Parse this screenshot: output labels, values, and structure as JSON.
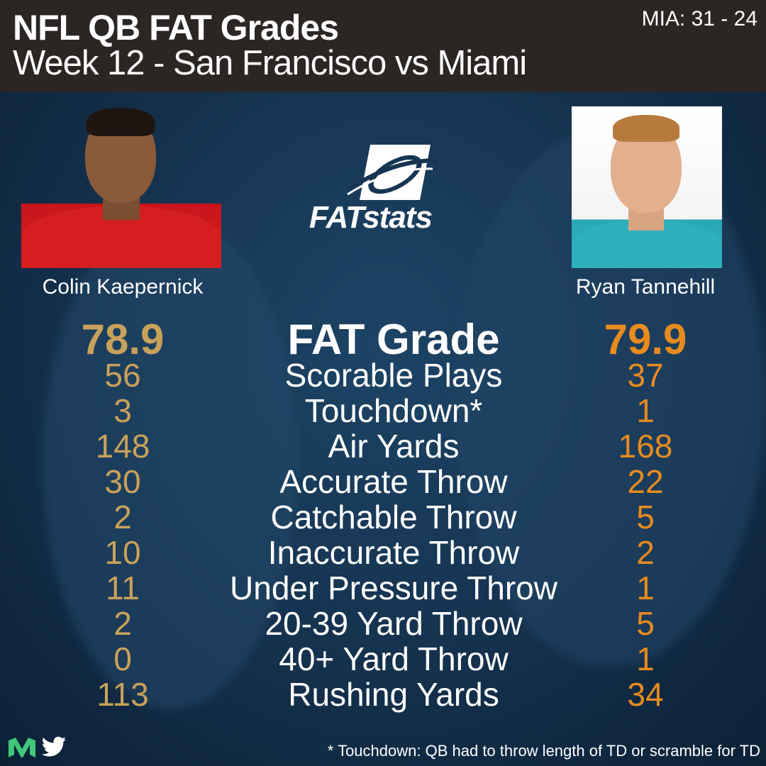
{
  "header": {
    "title": "NFL QB FAT Grades",
    "subtitle": "Week 12 - San Francisco vs Miami",
    "score": "MIA: 31 - 24"
  },
  "players": {
    "left": {
      "name": "Colin Kaepernick",
      "photo": "kaepernick-photo"
    },
    "right": {
      "name": "Ryan Tannehill",
      "photo": "tannehill-photo"
    }
  },
  "logo": {
    "text": "FATstats",
    "icon": "football-logo-icon"
  },
  "colors": {
    "left_values": "#c8a15a",
    "right_values": "#e78b1f",
    "header_bg": "#2b2623"
  },
  "stats": [
    {
      "label": "FAT Grade",
      "left": "78.9",
      "right": "79.9"
    },
    {
      "label": "Scorable Plays",
      "left": "56",
      "right": "37"
    },
    {
      "label": "Touchdown*",
      "left": "3",
      "right": "1"
    },
    {
      "label": "Air Yards",
      "left": "148",
      "right": "168"
    },
    {
      "label": "Accurate Throw",
      "left": "30",
      "right": "22"
    },
    {
      "label": "Catchable Throw",
      "left": "2",
      "right": "5"
    },
    {
      "label": "Inaccurate Throw",
      "left": "10",
      "right": "2"
    },
    {
      "label": "Under Pressure Throw",
      "left": "11",
      "right": "1"
    },
    {
      "label": "20-39 Yard Throw",
      "left": "2",
      "right": "5"
    },
    {
      "label": "40+ Yard Throw",
      "left": "0",
      "right": "1"
    },
    {
      "label": "Rushing Yards",
      "left": "113",
      "right": "34"
    }
  ],
  "footer": {
    "note": "* Touchdown: QB had to throw length of TD or scramble for TD",
    "icons": [
      "medium-icon",
      "twitter-icon"
    ]
  }
}
